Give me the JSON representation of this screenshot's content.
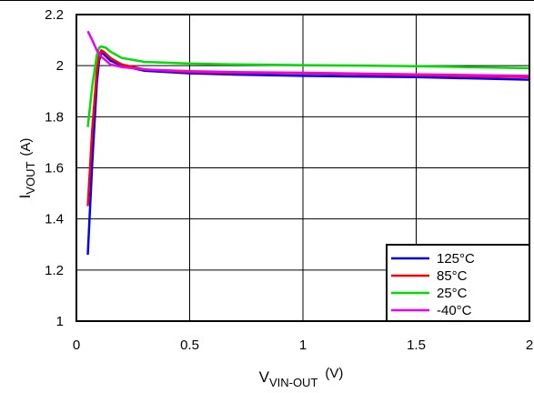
{
  "chart_data": {
    "type": "line",
    "title": "",
    "xlabel": {
      "main": "V",
      "subscript": "VIN-OUT",
      "unit": "(V)"
    },
    "ylabel": {
      "main": "I",
      "subscript": "VOUT",
      "unit": "(A)"
    },
    "xlim": [
      0,
      2
    ],
    "ylim": [
      1,
      2.2
    ],
    "grid": true,
    "legend_position": "bottom-right",
    "x_ticks": [
      "0",
      "0.5",
      "1",
      "1.5",
      "2"
    ],
    "y_ticks": [
      "1",
      "1.2",
      "1.4",
      "1.6",
      "1.8",
      "2",
      "2.2"
    ],
    "series": [
      {
        "name": "125°C",
        "color": "#0000ff",
        "points": [
          [
            0.05,
            1.26
          ],
          [
            0.07,
            1.62
          ],
          [
            0.09,
            1.93
          ],
          [
            0.1,
            2.02
          ],
          [
            0.11,
            2.05
          ],
          [
            0.12,
            2.045
          ],
          [
            0.15,
            2.02
          ],
          [
            0.2,
            2.0
          ],
          [
            0.3,
            1.98
          ],
          [
            0.5,
            1.97
          ],
          [
            0.7,
            1.965
          ],
          [
            1.0,
            1.96
          ],
          [
            1.5,
            1.955
          ],
          [
            2.0,
            1.945
          ]
        ]
      },
      {
        "name": "85°C",
        "color": "#ff0000",
        "points": [
          [
            0.05,
            1.45
          ],
          [
            0.07,
            1.75
          ],
          [
            0.09,
            1.98
          ],
          [
            0.1,
            2.04
          ],
          [
            0.11,
            2.06
          ],
          [
            0.12,
            2.055
          ],
          [
            0.15,
            2.03
          ],
          [
            0.2,
            2.005
          ],
          [
            0.3,
            1.985
          ],
          [
            0.5,
            1.975
          ],
          [
            0.7,
            1.972
          ],
          [
            1.0,
            1.97
          ],
          [
            1.5,
            1.962
          ],
          [
            2.0,
            1.955
          ]
        ]
      },
      {
        "name": "25°C",
        "color": "#00dd00",
        "points": [
          [
            0.05,
            1.76
          ],
          [
            0.07,
            1.92
          ],
          [
            0.09,
            2.04
          ],
          [
            0.1,
            2.07
          ],
          [
            0.11,
            2.075
          ],
          [
            0.13,
            2.07
          ],
          [
            0.15,
            2.055
          ],
          [
            0.2,
            2.03
          ],
          [
            0.3,
            2.015
          ],
          [
            0.5,
            2.008
          ],
          [
            0.7,
            2.005
          ],
          [
            1.0,
            2.002
          ],
          [
            1.5,
            1.998
          ],
          [
            2.0,
            1.99
          ]
        ]
      },
      {
        "name": "-40°C",
        "color": "#ee00ee",
        "points": [
          [
            0.05,
            2.135
          ],
          [
            0.07,
            2.1
          ],
          [
            0.09,
            2.06
          ],
          [
            0.11,
            2.035
          ],
          [
            0.13,
            2.02
          ],
          [
            0.15,
            2.005
          ],
          [
            0.2,
            1.995
          ],
          [
            0.3,
            1.985
          ],
          [
            0.5,
            1.978
          ],
          [
            0.7,
            1.975
          ],
          [
            1.0,
            1.972
          ],
          [
            1.5,
            1.966
          ],
          [
            2.0,
            1.96
          ]
        ]
      }
    ]
  }
}
